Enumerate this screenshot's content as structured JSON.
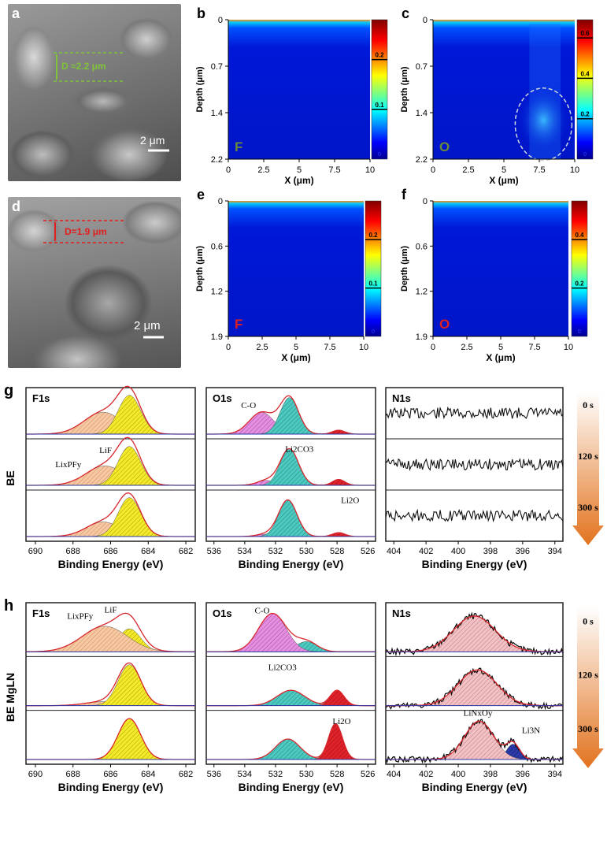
{
  "sem_panels": [
    {
      "letter": "a",
      "depth_label": "D ≈2.2 μm",
      "scale_label": "2 μm"
    },
    {
      "letter": "d",
      "depth_label": "D=1.9 μm",
      "scale_label": "2 μm"
    }
  ],
  "maps": [
    {
      "letter": "b",
      "element": "F",
      "element_color": "#6a8a3a",
      "yticks": [
        "0",
        "0.7",
        "1.4",
        "2.2"
      ],
      "xticks": [
        "0",
        "2.5",
        "5",
        "7.5",
        "10"
      ],
      "xlabel": "X (μm)",
      "ylabel": "Depth (μm)",
      "scale_ticks": [
        "0.2",
        "0.1"
      ],
      "scale_bottom": "0"
    },
    {
      "letter": "c",
      "element": "O",
      "element_color": "#6a8a3a",
      "yticks": [
        "0",
        "0.7",
        "1.4",
        "2.2"
      ],
      "xticks": [
        "0",
        "2.5",
        "5",
        "7.5",
        "10"
      ],
      "xlabel": "X (μm)",
      "ylabel": "Depth (μm)",
      "scale_ticks": [
        "0.6",
        "0.4",
        "0.2"
      ],
      "scale_bottom": "0"
    },
    {
      "letter": "e",
      "element": "F",
      "element_color": "#e02020",
      "yticks": [
        "0",
        "0.6",
        "1.2",
        "1.9"
      ],
      "xticks": [
        "0",
        "2.5",
        "5",
        "7.5",
        "10"
      ],
      "xlabel": "X (μm)",
      "ylabel": "Depth (μm)",
      "scale_ticks": [
        "0.2",
        "0.1"
      ],
      "scale_bottom": "0"
    },
    {
      "letter": "f",
      "element": "O",
      "element_color": "#e02020",
      "yticks": [
        "0",
        "0.6",
        "1.2",
        "1.9"
      ],
      "xticks": [
        "0",
        "2.5",
        "5",
        "7.5",
        "10"
      ],
      "xlabel": "X (μm)",
      "ylabel": "Depth (μm)",
      "scale_ticks": [
        "0.4",
        "0.2"
      ],
      "scale_bottom": "0"
    }
  ],
  "rows": [
    {
      "letter": "g",
      "side_label": "BE",
      "panels": [
        {
          "title": "F1s",
          "xticks": [
            "690",
            "688",
            "686",
            "684",
            "682"
          ],
          "xlabel": "Binding Energy (eV)",
          "annotations": [
            {
              "text": "LiF"
            },
            {
              "text": "LixPFy"
            }
          ]
        },
        {
          "title": "O1s",
          "xticks": [
            "536",
            "534",
            "532",
            "530",
            "528",
            "526"
          ],
          "xlabel": "Binding Energy (eV)",
          "annotations": [
            {
              "text": "C-O"
            },
            {
              "text": "Li2CO3"
            },
            {
              "text": "Li2O"
            }
          ]
        },
        {
          "title": "N1s",
          "xticks": [
            "404",
            "402",
            "400",
            "398",
            "396",
            "394"
          ],
          "xlabel": "Binding Energy (eV)",
          "annotations": []
        }
      ],
      "times": [
        "0 s",
        "120 s",
        "300 s"
      ]
    },
    {
      "letter": "h",
      "side_label": "BE MgLN",
      "panels": [
        {
          "title": "F1s",
          "xticks": [
            "690",
            "688",
            "686",
            "684",
            "682"
          ],
          "xlabel": "Binding Energy (eV)",
          "annotations": [
            {
              "text": "LixPFy"
            },
            {
              "text": "LiF"
            }
          ]
        },
        {
          "title": "O1s",
          "xticks": [
            "536",
            "534",
            "532",
            "530",
            "528",
            "526"
          ],
          "xlabel": "Binding Energy (eV)",
          "annotations": [
            {
              "text": "C-O"
            },
            {
              "text": "Li2CO3"
            },
            {
              "text": "Li2O"
            }
          ]
        },
        {
          "title": "N1s",
          "xticks": [
            "404",
            "402",
            "400",
            "398",
            "396",
            "394"
          ],
          "xlabel": "Binding Energy (eV)",
          "annotations": [
            {
              "text": "LiNxOy"
            },
            {
              "text": "Li3N"
            }
          ]
        }
      ],
      "times": [
        "0 s",
        "120 s",
        "300 s"
      ]
    }
  ]
}
